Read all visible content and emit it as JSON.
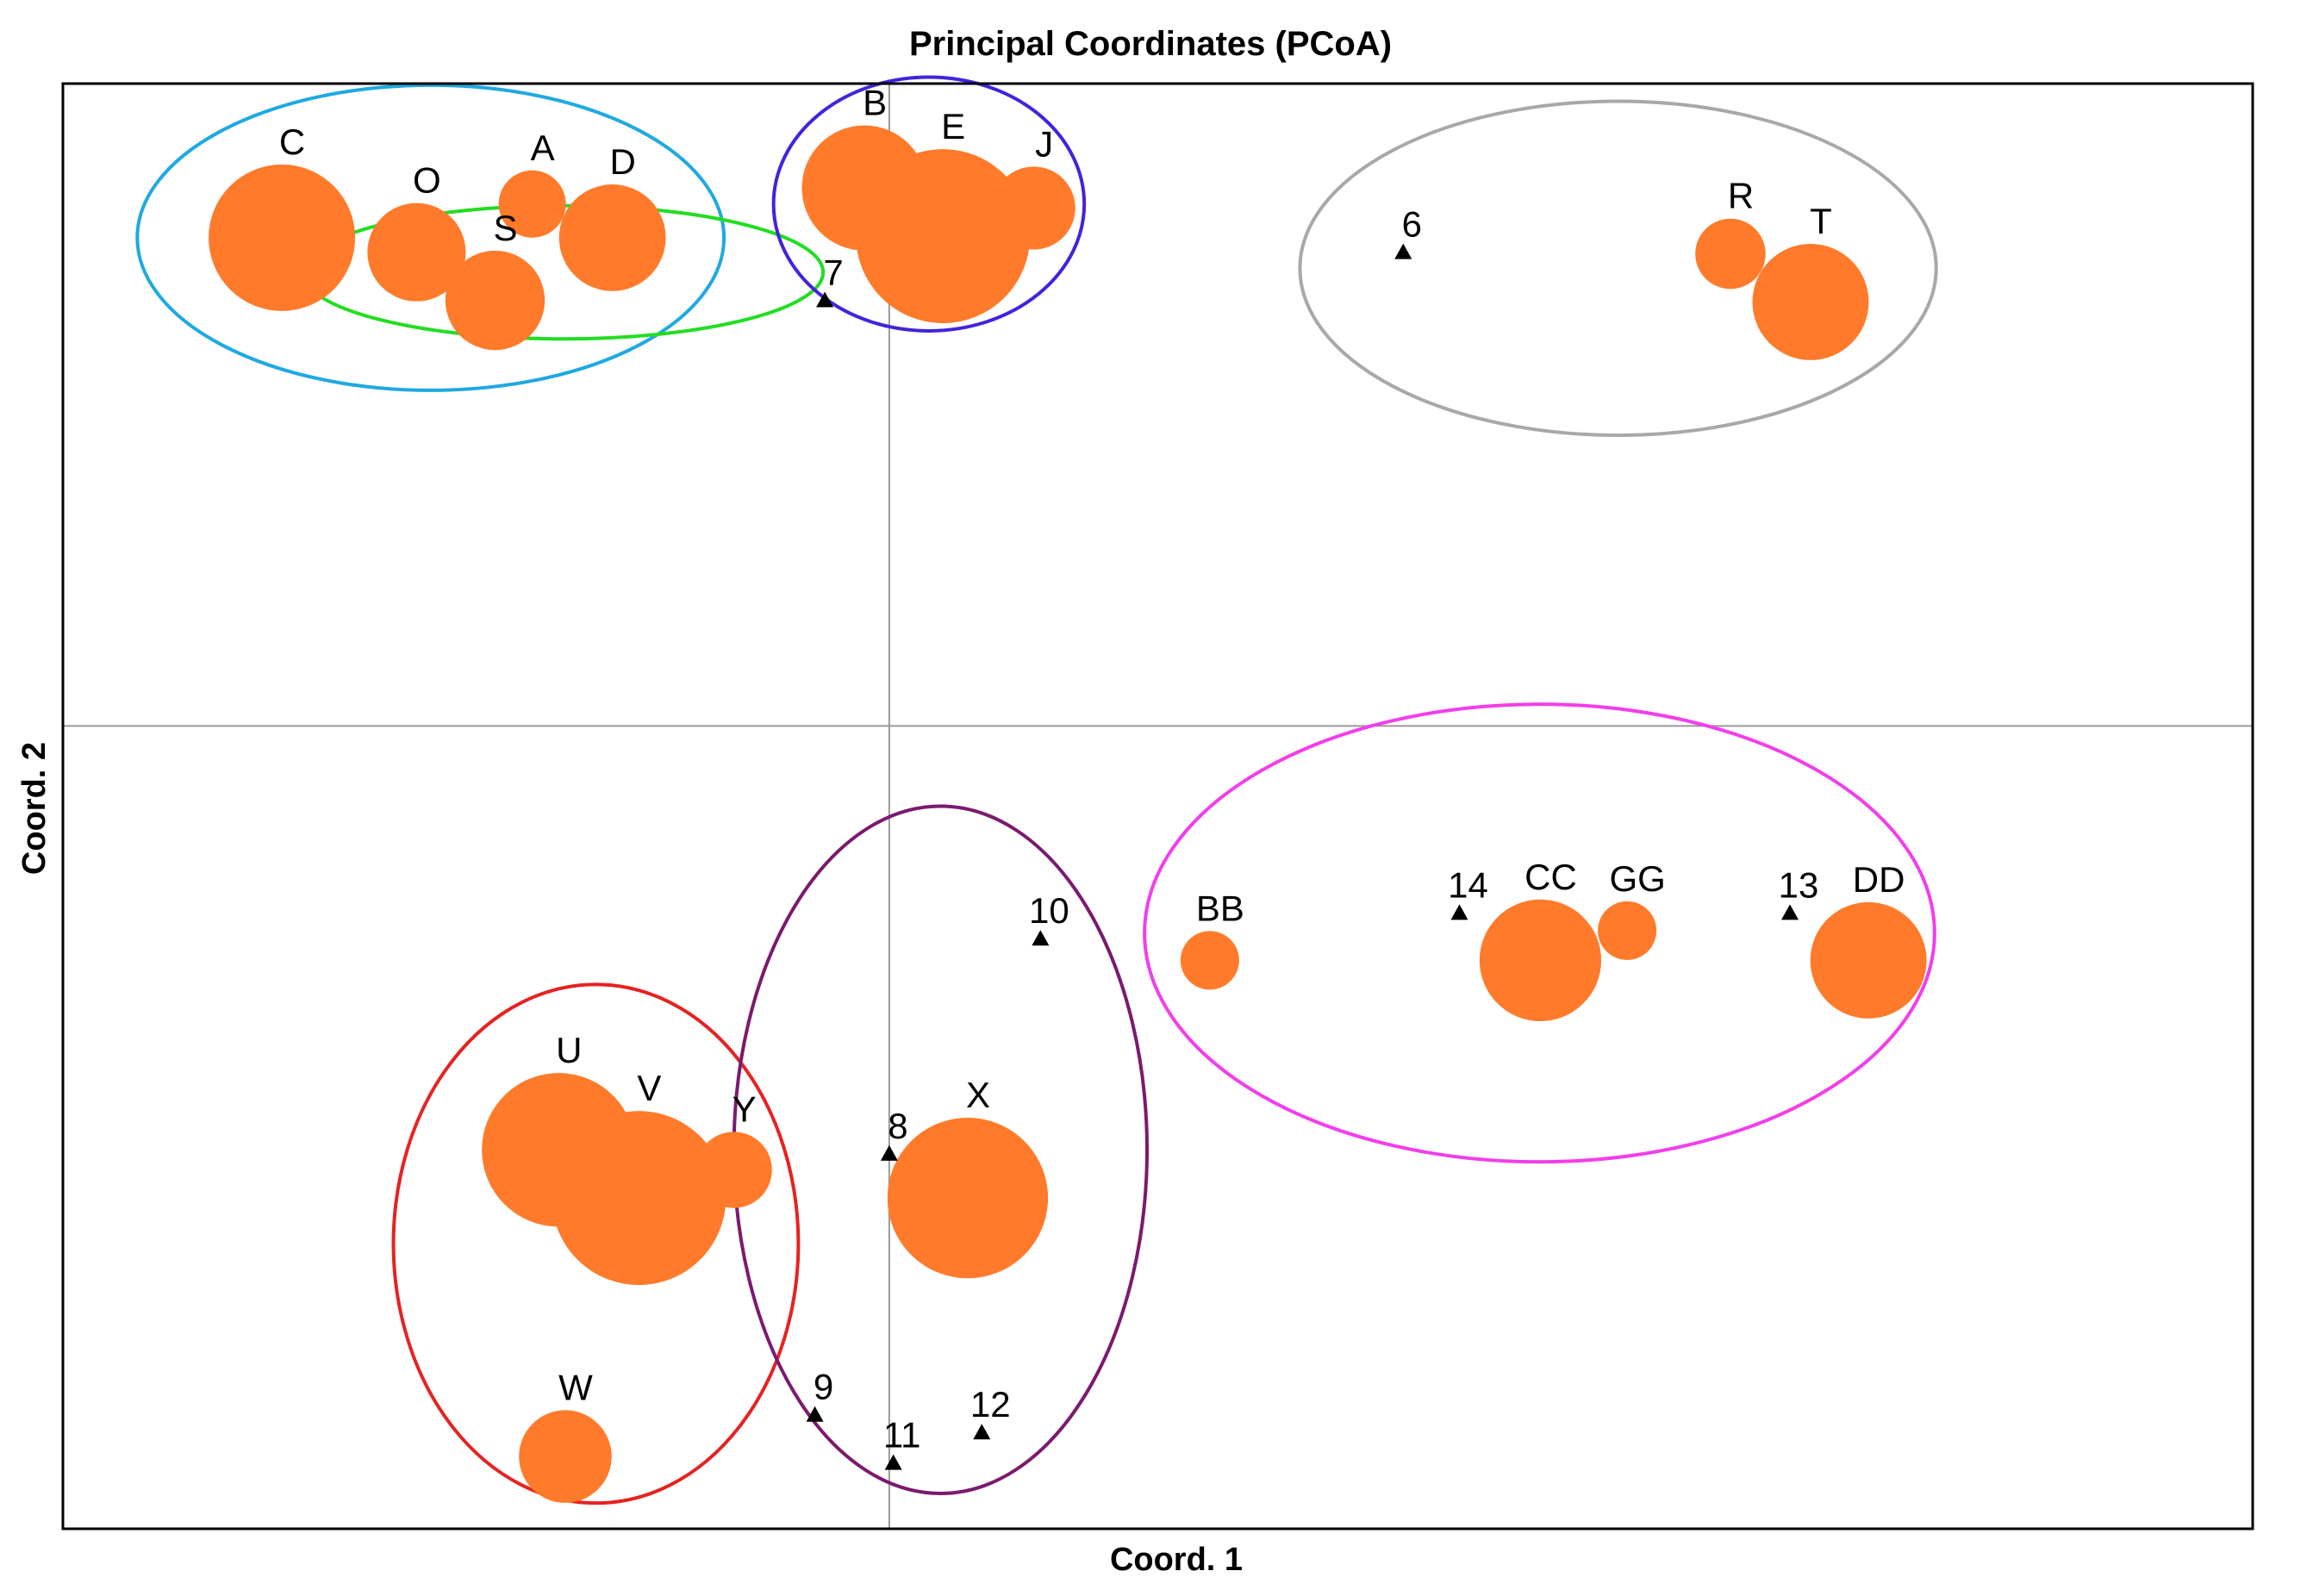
{
  "chart_data": {
    "type": "scatter",
    "title": "Principal Coordinates (PCoA)",
    "xlabel": "Coord. 1",
    "ylabel": "Coord. 2",
    "xlim": [
      -1.0,
      1.65
    ],
    "ylim": [
      -1.0,
      0.8
    ],
    "grid": false,
    "reference_lines": {
      "x": 0,
      "y": 0
    },
    "colors": {
      "bubble": "#FF7A2A",
      "triangle": "#000000",
      "frame": "#000000",
      "ref_line": "#999999"
    },
    "bubbles": [
      {
        "label": "C",
        "x": -0.735,
        "y": 0.608,
        "size": 1.0
      },
      {
        "label": "O",
        "x": -0.572,
        "y": 0.59,
        "size": 0.45
      },
      {
        "label": "A",
        "x": -0.432,
        "y": 0.65,
        "size": 0.21
      },
      {
        "label": "S",
        "x": -0.477,
        "y": 0.53,
        "size": 0.46
      },
      {
        "label": "D",
        "x": -0.335,
        "y": 0.608,
        "size": 0.53
      },
      {
        "label": "B",
        "x": -0.03,
        "y": 0.67,
        "size": 0.73
      },
      {
        "label": "E",
        "x": 0.065,
        "y": 0.61,
        "size": 1.41
      },
      {
        "label": "J",
        "x": 0.175,
        "y": 0.645,
        "size": 0.32
      },
      {
        "label": "R",
        "x": 1.018,
        "y": 0.588,
        "size": 0.23
      },
      {
        "label": "T",
        "x": 1.115,
        "y": 0.528,
        "size": 0.63
      },
      {
        "label": "BB",
        "x": 0.388,
        "y": -0.292,
        "size": 0.16
      },
      {
        "label": "CC",
        "x": 0.788,
        "y": -0.292,
        "size": 0.69
      },
      {
        "label": "GG",
        "x": 0.893,
        "y": -0.255,
        "size": 0.16
      },
      {
        "label": "DD",
        "x": 1.185,
        "y": -0.292,
        "size": 0.63
      },
      {
        "label": "U",
        "x": -0.4,
        "y": -0.528,
        "size": 1.1
      },
      {
        "label": "V",
        "x": -0.303,
        "y": -0.588,
        "size": 1.41
      },
      {
        "label": "Y",
        "x": -0.188,
        "y": -0.553,
        "size": 0.27
      },
      {
        "label": "W",
        "x": -0.392,
        "y": -0.91,
        "size": 0.4
      },
      {
        "label": "X",
        "x": 0.095,
        "y": -0.588,
        "size": 1.2
      }
    ],
    "triangles": [
      {
        "label": "6",
        "x": 0.622,
        "y": 0.59
      },
      {
        "label": "7",
        "x": -0.078,
        "y": 0.53
      },
      {
        "label": "8",
        "x": 0.0,
        "y": -0.533
      },
      {
        "label": "9",
        "x": -0.09,
        "y": -0.858
      },
      {
        "label": "10",
        "x": 0.183,
        "y": -0.265
      },
      {
        "label": "11",
        "x": 0.005,
        "y": -0.918
      },
      {
        "label": "12",
        "x": 0.112,
        "y": -0.88
      },
      {
        "label": "13",
        "x": 1.09,
        "y": -0.233
      },
      {
        "label": "14",
        "x": 0.69,
        "y": -0.233
      }
    ],
    "ellipses": [
      {
        "group": "C-O-A-D-S",
        "color": "#1FA9E1",
        "cx": -0.555,
        "cy": 0.608,
        "rx": 0.355,
        "ry": 0.19
      },
      {
        "group": "O-S-D-7",
        "color": "#22DD22",
        "cx": -0.395,
        "cy": 0.565,
        "rx": 0.315,
        "ry": 0.083
      },
      {
        "group": "B-E-J",
        "color": "#4422DD",
        "cx": 0.048,
        "cy": 0.65,
        "rx": 0.188,
        "ry": 0.158
      },
      {
        "group": "6-R-T",
        "color": "#A8A8A8",
        "cx": 0.882,
        "cy": 0.57,
        "rx": 0.385,
        "ry": 0.208
      },
      {
        "group": "BB-CC-GG-DD-13-14",
        "color": "#F23EEA",
        "cx": 0.787,
        "cy": -0.258,
        "rx": 0.478,
        "ry": 0.285
      },
      {
        "group": "U-V-Y-W",
        "color": "#E62222",
        "cx": -0.355,
        "cy": -0.645,
        "rx": 0.245,
        "ry": 0.323
      },
      {
        "group": "8-9-10-11-12-X",
        "color": "#7B1A6E",
        "cx": 0.062,
        "cy": -0.528,
        "rx": 0.25,
        "ry": 0.428
      }
    ]
  }
}
